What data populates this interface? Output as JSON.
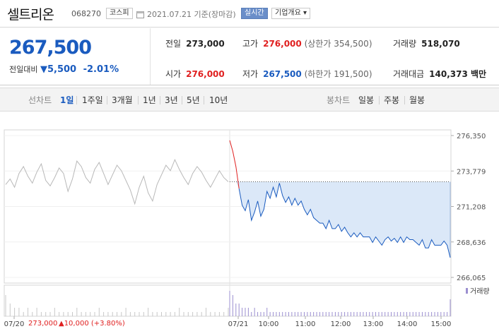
{
  "header": {
    "name": "셀트리온",
    "code": "068270",
    "market": "코스피",
    "date": "2021.07.21 기준(장마감)",
    "realtime_label": "실시간",
    "overview_label": "기업개요 ▾"
  },
  "summary": {
    "price": "267,500",
    "change_label": "전일대비",
    "change_amount": "▼5,500",
    "change_pct": "-2.01%",
    "prev_close_label": "전일",
    "prev_close": "273,000",
    "high_label": "고가",
    "high": "276,000",
    "upper_limit": "(상한가 354,500)",
    "volume_label": "거래량",
    "volume": "518,070",
    "open_label": "시가",
    "open": "276,000",
    "low_label": "저가",
    "low": "267,500",
    "lower_limit": "(하한가 191,500)",
    "amount_label": "거래대금",
    "amount": "140,373 백만"
  },
  "tabs": {
    "line_chart_label": "선차트",
    "line_periods": [
      "1일",
      "1주일",
      "3개월",
      "1년",
      "3년",
      "5년",
      "10년"
    ],
    "candle_chart_label": "봉차트",
    "candle_periods": [
      "일봉",
      "주봉",
      "월봉"
    ]
  },
  "colors": {
    "up": "#e02020",
    "down": "#1a5bbf",
    "prev_line": "#b8b8b8",
    "fill": "#dbe8f8",
    "volume_bar": "#9b8fd0"
  },
  "chart_data": {
    "type": "line",
    "ylim": [
      266065,
      276350
    ],
    "y_ticks": [
      "276,350",
      "273,779",
      "271,208",
      "268,636",
      "266,065"
    ],
    "x_ticks": [
      "07/20",
      "07/21",
      "10:00",
      "11:00",
      "12:00",
      "13:00",
      "14:00",
      "15:00"
    ],
    "reference_price": 273000,
    "series": [
      {
        "values_prev_day": [
          272800,
          273200,
          272600,
          273600,
          274100,
          273400,
          272900,
          273700,
          274300,
          273100,
          272700,
          273300,
          274000,
          273600,
          272300,
          273200,
          274500,
          274100,
          273300,
          272900,
          273900,
          274400,
          273600,
          272800,
          273500,
          274200,
          273800,
          273100,
          272400,
          271400,
          272600,
          273400,
          272200,
          271600,
          272800,
          273500,
          274200,
          273800,
          274600,
          273900,
          273300,
          272800,
          273600,
          274100,
          273700,
          273100,
          272600,
          273200,
          273800,
          273300,
          273000
        ],
        "values_today": [
          276000,
          275200,
          274100,
          272500,
          271300,
          270900,
          271700,
          270200,
          270800,
          271600,
          270500,
          271000,
          272300,
          271800,
          272600,
          271900,
          272900,
          272000,
          271500,
          271900,
          271300,
          271800,
          271300,
          271600,
          271000,
          270600,
          271000,
          270400,
          270200,
          270000,
          270000,
          269600,
          270200,
          269600,
          269600,
          269900,
          269400,
          269700,
          269300,
          269000,
          269300,
          269000,
          269300,
          269000,
          269000,
          269000,
          268600,
          269000,
          268700,
          268400,
          268800,
          269000,
          268700,
          268900,
          268600,
          269000,
          268600,
          269000,
          268800,
          268800,
          268600,
          268400,
          268800,
          268200,
          268200,
          268800,
          268400,
          268400,
          268400,
          268700,
          268400,
          267500
        ]
      }
    ],
    "volume": {
      "legend": "거래량",
      "values_prev_day": [
        5,
        3,
        2,
        2,
        1,
        2,
        1,
        2,
        1,
        1,
        1,
        2,
        1,
        1,
        1,
        1,
        2,
        1,
        1,
        1,
        1,
        2,
        1,
        1,
        1,
        1,
        1,
        2,
        1,
        1,
        1,
        1,
        2,
        1,
        1,
        1,
        1,
        1,
        1,
        2,
        1,
        1,
        1,
        1,
        1,
        2,
        1,
        1,
        1,
        1,
        2
      ],
      "values_today": [
        6,
        5,
        3,
        3,
        2,
        2,
        2,
        1,
        2,
        1,
        1,
        1,
        2,
        1,
        1,
        1,
        1,
        1,
        1,
        1,
        1,
        1,
        1,
        1,
        1,
        1,
        1,
        1,
        1,
        1,
        1,
        1,
        1,
        1,
        1,
        1,
        1,
        1,
        1,
        1,
        1,
        1,
        1,
        1,
        1,
        1,
        1,
        1,
        1,
        1,
        1,
        1,
        1,
        1,
        1,
        1,
        1,
        1,
        1,
        1,
        1,
        1,
        1,
        1,
        1,
        1,
        1,
        1,
        1,
        1,
        1,
        4
      ]
    },
    "footer_prev": {
      "date": "07/20",
      "price": "273,000",
      "change": "▲10,000 (+3.80%)"
    }
  }
}
